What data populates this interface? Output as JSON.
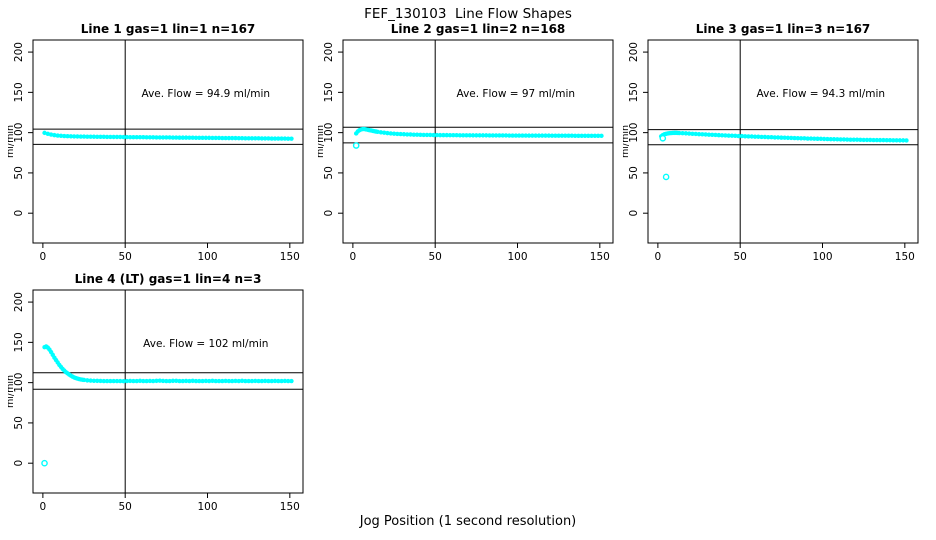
{
  "title": "FEF_130103  Line Flow Shapes",
  "xlabel": "Jog Position (1 second resolution)",
  "colors": {
    "points": "#00FFFF",
    "axis": "#000000",
    "background": "#FFFFFF",
    "text": "#000000"
  },
  "chart_data": [
    {
      "type": "scatter",
      "title": "Line 1 gas=1 lin=1 n=167",
      "annotation": "Ave. Flow =  94.9  ml/min",
      "ave_flow": 94.9,
      "n": 167,
      "ylabel": "ml/min",
      "xticks": [
        0,
        50,
        100,
        150
      ],
      "yticks": [
        0,
        50,
        100,
        150,
        200
      ],
      "xlim": [
        -6,
        158
      ],
      "ylim": [
        -37,
        215
      ],
      "ref_lines_y": [
        104.4,
        85.4
      ],
      "ref_line_x": 50,
      "grid": false,
      "points": [
        [
          1,
          99.7
        ],
        [
          3,
          98.5
        ],
        [
          5,
          97.6
        ],
        [
          7,
          96.9
        ],
        [
          9,
          96.4
        ],
        [
          11,
          96.1
        ],
        [
          13,
          95.8
        ],
        [
          15,
          95.6
        ],
        [
          17,
          95.5
        ],
        [
          19,
          95.3
        ],
        [
          21,
          95.2
        ],
        [
          23,
          95.1
        ],
        [
          25,
          95.1
        ],
        [
          27,
          95.0
        ],
        [
          29,
          95.0
        ],
        [
          31,
          94.9
        ],
        [
          33,
          94.8
        ],
        [
          35,
          94.8
        ],
        [
          37,
          94.8
        ],
        [
          39,
          94.7
        ],
        [
          41,
          94.7
        ],
        [
          43,
          94.6
        ],
        [
          45,
          94.6
        ],
        [
          47,
          94.6
        ],
        [
          49,
          94.5
        ],
        [
          51,
          94.5
        ],
        [
          53,
          94.4
        ],
        [
          55,
          94.4
        ],
        [
          57,
          94.4
        ],
        [
          59,
          94.3
        ],
        [
          61,
          94.3
        ],
        [
          63,
          94.2
        ],
        [
          65,
          94.2
        ],
        [
          67,
          94.2
        ],
        [
          69,
          94.1
        ],
        [
          71,
          94.1
        ],
        [
          73,
          94.0
        ],
        [
          75,
          94.0
        ],
        [
          77,
          94.0
        ],
        [
          79,
          93.9
        ],
        [
          81,
          93.9
        ],
        [
          83,
          93.8
        ],
        [
          85,
          93.8
        ],
        [
          87,
          93.8
        ],
        [
          89,
          93.7
        ],
        [
          91,
          93.7
        ],
        [
          93,
          93.6
        ],
        [
          95,
          93.6
        ],
        [
          97,
          93.6
        ],
        [
          99,
          93.5
        ],
        [
          101,
          93.5
        ],
        [
          103,
          93.4
        ],
        [
          105,
          93.4
        ],
        [
          107,
          93.4
        ],
        [
          109,
          93.3
        ],
        [
          111,
          93.3
        ],
        [
          113,
          93.2
        ],
        [
          115,
          93.2
        ],
        [
          117,
          93.2
        ],
        [
          119,
          93.1
        ],
        [
          121,
          93.1
        ],
        [
          123,
          93.0
        ],
        [
          125,
          93.0
        ],
        [
          127,
          93.0
        ],
        [
          129,
          92.9
        ],
        [
          131,
          92.9
        ],
        [
          133,
          92.8
        ],
        [
          135,
          92.8
        ],
        [
          137,
          92.8
        ],
        [
          139,
          92.7
        ],
        [
          141,
          92.7
        ],
        [
          143,
          92.6
        ],
        [
          145,
          92.6
        ],
        [
          147,
          92.6
        ],
        [
          149,
          92.5
        ],
        [
          151,
          92.5
        ]
      ],
      "outliers": []
    },
    {
      "type": "scatter",
      "title": "Line 2 gas=1 lin=2 n=168",
      "annotation": "Ave. Flow =  97  ml/min",
      "ave_flow": 97,
      "n": 168,
      "ylabel": "ml/min",
      "xticks": [
        0,
        50,
        100,
        150
      ],
      "yticks": [
        0,
        50,
        100,
        150,
        200
      ],
      "xlim": [
        -6,
        158
      ],
      "ylim": [
        -37,
        215
      ],
      "ref_lines_y": [
        106.7,
        87.3
      ],
      "ref_line_x": 50,
      "grid": false,
      "points": [
        [
          2,
          99
        ],
        [
          3,
          101.5
        ],
        [
          4,
          103
        ],
        [
          5,
          104
        ],
        [
          6,
          104.5
        ],
        [
          7,
          104.4
        ],
        [
          8,
          104
        ],
        [
          9,
          103.6
        ],
        [
          10,
          103.1
        ],
        [
          11,
          102.7
        ],
        [
          12,
          102.2
        ],
        [
          13,
          101.8
        ],
        [
          14,
          101.4
        ],
        [
          15,
          101
        ],
        [
          17,
          100.4
        ],
        [
          19,
          99.9
        ],
        [
          21,
          99.4
        ],
        [
          23,
          99
        ],
        [
          25,
          98.7
        ],
        [
          27,
          98.4
        ],
        [
          29,
          98.2
        ],
        [
          31,
          98
        ],
        [
          33,
          97.8
        ],
        [
          35,
          97.7
        ],
        [
          37,
          97.5
        ],
        [
          39,
          97.4
        ],
        [
          41,
          97.3
        ],
        [
          43,
          97.2
        ],
        [
          45,
          97.2
        ],
        [
          47,
          97.1
        ],
        [
          49,
          97
        ],
        [
          51,
          97
        ],
        [
          53,
          96.9
        ],
        [
          55,
          96.9
        ],
        [
          57,
          96.9
        ],
        [
          59,
          96.8
        ],
        [
          61,
          96.8
        ],
        [
          63,
          96.8
        ],
        [
          65,
          96.7
        ],
        [
          67,
          96.7
        ],
        [
          69,
          96.7
        ],
        [
          71,
          96.7
        ],
        [
          73,
          96.6
        ],
        [
          75,
          96.6
        ],
        [
          77,
          96.6
        ],
        [
          79,
          96.6
        ],
        [
          81,
          96.6
        ],
        [
          83,
          96.5
        ],
        [
          85,
          96.5
        ],
        [
          87,
          96.5
        ],
        [
          89,
          96.5
        ],
        [
          91,
          96.5
        ],
        [
          93,
          96.5
        ],
        [
          95,
          96.4
        ],
        [
          97,
          96.4
        ],
        [
          99,
          96.4
        ],
        [
          101,
          96.4
        ],
        [
          103,
          96.4
        ],
        [
          105,
          96.4
        ],
        [
          107,
          96.3
        ],
        [
          109,
          96.3
        ],
        [
          111,
          96.3
        ],
        [
          113,
          96.3
        ],
        [
          115,
          96.3
        ],
        [
          117,
          96.3
        ],
        [
          119,
          96.3
        ],
        [
          121,
          96.2
        ],
        [
          123,
          96.2
        ],
        [
          125,
          96.2
        ],
        [
          127,
          96.2
        ],
        [
          129,
          96.2
        ],
        [
          131,
          96.2
        ],
        [
          133,
          96.2
        ],
        [
          135,
          96.1
        ],
        [
          137,
          96.1
        ],
        [
          139,
          96.1
        ],
        [
          141,
          96.1
        ],
        [
          143,
          96.1
        ],
        [
          145,
          96.1
        ],
        [
          147,
          96.1
        ],
        [
          149,
          96
        ],
        [
          151,
          96
        ]
      ],
      "outliers": [
        [
          2,
          84
        ]
      ]
    },
    {
      "type": "scatter",
      "title": "Line 3 gas=1 lin=3 n=167",
      "annotation": "Ave. Flow =  94.3  ml/min",
      "ave_flow": 94.3,
      "n": 167,
      "ylabel": "ml/min",
      "xticks": [
        0,
        50,
        100,
        150
      ],
      "yticks": [
        0,
        50,
        100,
        150,
        200
      ],
      "xlim": [
        -6,
        158
      ],
      "ylim": [
        -37,
        215
      ],
      "ref_lines_y": [
        103.7,
        84.9
      ],
      "ref_line_x": 50,
      "grid": false,
      "points": [
        [
          2,
          95.5
        ],
        [
          3,
          97
        ],
        [
          4,
          98
        ],
        [
          5,
          98.6
        ],
        [
          6,
          99
        ],
        [
          7,
          99.3
        ],
        [
          8,
          99.5
        ],
        [
          9,
          99.6
        ],
        [
          10,
          99.7
        ],
        [
          11,
          99.7
        ],
        [
          12,
          99.6
        ],
        [
          13,
          99.5
        ],
        [
          15,
          99.3
        ],
        [
          17,
          99.1
        ],
        [
          19,
          98.8
        ],
        [
          21,
          98.6
        ],
        [
          23,
          98.4
        ],
        [
          25,
          98.1
        ],
        [
          27,
          97.9
        ],
        [
          29,
          97.7
        ],
        [
          31,
          97.5
        ],
        [
          33,
          97.3
        ],
        [
          35,
          97.1
        ],
        [
          37,
          96.9
        ],
        [
          39,
          96.7
        ],
        [
          41,
          96.5
        ],
        [
          43,
          96.3
        ],
        [
          45,
          96.2
        ],
        [
          47,
          96
        ],
        [
          49,
          95.8
        ],
        [
          51,
          95.7
        ],
        [
          53,
          95.5
        ],
        [
          55,
          95.3
        ],
        [
          57,
          95.2
        ],
        [
          59,
          95
        ],
        [
          61,
          94.9
        ],
        [
          63,
          94.7
        ],
        [
          65,
          94.6
        ],
        [
          67,
          94.4
        ],
        [
          69,
          94.3
        ],
        [
          71,
          94.1
        ],
        [
          73,
          94
        ],
        [
          75,
          93.8
        ],
        [
          77,
          93.7
        ],
        [
          79,
          93.5
        ],
        [
          81,
          93.4
        ],
        [
          83,
          93.3
        ],
        [
          85,
          93.1
        ],
        [
          87,
          93
        ],
        [
          89,
          92.9
        ],
        [
          91,
          92.7
        ],
        [
          93,
          92.6
        ],
        [
          95,
          92.5
        ],
        [
          97,
          92.4
        ],
        [
          99,
          92.3
        ],
        [
          101,
          92.1
        ],
        [
          103,
          92
        ],
        [
          105,
          91.9
        ],
        [
          107,
          91.8
        ],
        [
          109,
          91.7
        ],
        [
          111,
          91.6
        ],
        [
          113,
          91.5
        ],
        [
          115,
          91.4
        ],
        [
          117,
          91.3
        ],
        [
          119,
          91.3
        ],
        [
          121,
          91.2
        ],
        [
          123,
          91.1
        ],
        [
          125,
          91
        ],
        [
          127,
          91
        ],
        [
          129,
          90.9
        ],
        [
          131,
          90.8
        ],
        [
          133,
          90.8
        ],
        [
          135,
          90.7
        ],
        [
          137,
          90.7
        ],
        [
          139,
          90.6
        ],
        [
          141,
          90.6
        ],
        [
          143,
          90.5
        ],
        [
          145,
          90.5
        ],
        [
          147,
          90.4
        ],
        [
          149,
          90.4
        ],
        [
          151,
          90.3
        ]
      ],
      "outliers": [
        [
          3,
          93
        ],
        [
          5,
          45
        ]
      ]
    },
    {
      "type": "scatter",
      "title": "Line 4 (LT) gas=1 lin=4 n=3",
      "annotation": "Ave. Flow =  102  ml/min",
      "ave_flow": 102,
      "n": 3,
      "ylabel": "ml/min",
      "xticks": [
        0,
        50,
        100,
        150
      ],
      "yticks": [
        0,
        50,
        100,
        150,
        200
      ],
      "xlim": [
        -6,
        158
      ],
      "ylim": [
        -37,
        215
      ],
      "ref_lines_y": [
        112.2,
        91.8
      ],
      "ref_line_x": 50,
      "grid": false,
      "points": [
        [
          1,
          144
        ],
        [
          2,
          145
        ],
        [
          3,
          143.5
        ],
        [
          4,
          141
        ],
        [
          5,
          138
        ],
        [
          6,
          134.5
        ],
        [
          7,
          131
        ],
        [
          8,
          128
        ],
        [
          9,
          125
        ],
        [
          10,
          122
        ],
        [
          11,
          119.5
        ],
        [
          12,
          117
        ],
        [
          13,
          115
        ],
        [
          14,
          113
        ],
        [
          15,
          111.5
        ],
        [
          16,
          110
        ],
        [
          17,
          108.7
        ],
        [
          18,
          107.5
        ],
        [
          19,
          106.5
        ],
        [
          20,
          105.7
        ],
        [
          21,
          105
        ],
        [
          22,
          104.4
        ],
        [
          23,
          104
        ],
        [
          24,
          103.6
        ],
        [
          25,
          103.3
        ],
        [
          27,
          102.8
        ],
        [
          29,
          102.5
        ],
        [
          31,
          102.3
        ],
        [
          33,
          102.2
        ],
        [
          35,
          102.1
        ],
        [
          37,
          102
        ],
        [
          39,
          102
        ],
        [
          41,
          102
        ],
        [
          43,
          101.9
        ],
        [
          45,
          101.9
        ],
        [
          47,
          101.9
        ],
        [
          49,
          101.8
        ],
        [
          51,
          102
        ],
        [
          53,
          102.1
        ],
        [
          55,
          101.9
        ],
        [
          57,
          102
        ],
        [
          59,
          102.2
        ],
        [
          61,
          102
        ],
        [
          63,
          101.9
        ],
        [
          65,
          102.1
        ],
        [
          67,
          102
        ],
        [
          69,
          102.2
        ],
        [
          71,
          102.4
        ],
        [
          73,
          102.1
        ],
        [
          75,
          101.9
        ],
        [
          77,
          102
        ],
        [
          79,
          102.2
        ],
        [
          81,
          102.3
        ],
        [
          83,
          102
        ],
        [
          85,
          101.9
        ],
        [
          87,
          102.1
        ],
        [
          89,
          102
        ],
        [
          91,
          102.2
        ],
        [
          93,
          102
        ],
        [
          95,
          101.9
        ],
        [
          97,
          102
        ],
        [
          99,
          102.1
        ],
        [
          101,
          102
        ],
        [
          103,
          102.2
        ],
        [
          105,
          102
        ],
        [
          107,
          101.9
        ],
        [
          109,
          102
        ],
        [
          111,
          102.1
        ],
        [
          113,
          102
        ],
        [
          115,
          102
        ],
        [
          117,
          102.1
        ],
        [
          119,
          102
        ],
        [
          121,
          102.2
        ],
        [
          123,
          102
        ],
        [
          125,
          101.9
        ],
        [
          127,
          102
        ],
        [
          129,
          102.1
        ],
        [
          131,
          102
        ],
        [
          133,
          102
        ],
        [
          135,
          102.1
        ],
        [
          137,
          102
        ],
        [
          139,
          102
        ],
        [
          141,
          102.1
        ],
        [
          143,
          102
        ],
        [
          145,
          102
        ],
        [
          147,
          102.1
        ],
        [
          149,
          102
        ],
        [
          151,
          102
        ]
      ],
      "outliers": [
        [
          1,
          0
        ]
      ]
    }
  ]
}
